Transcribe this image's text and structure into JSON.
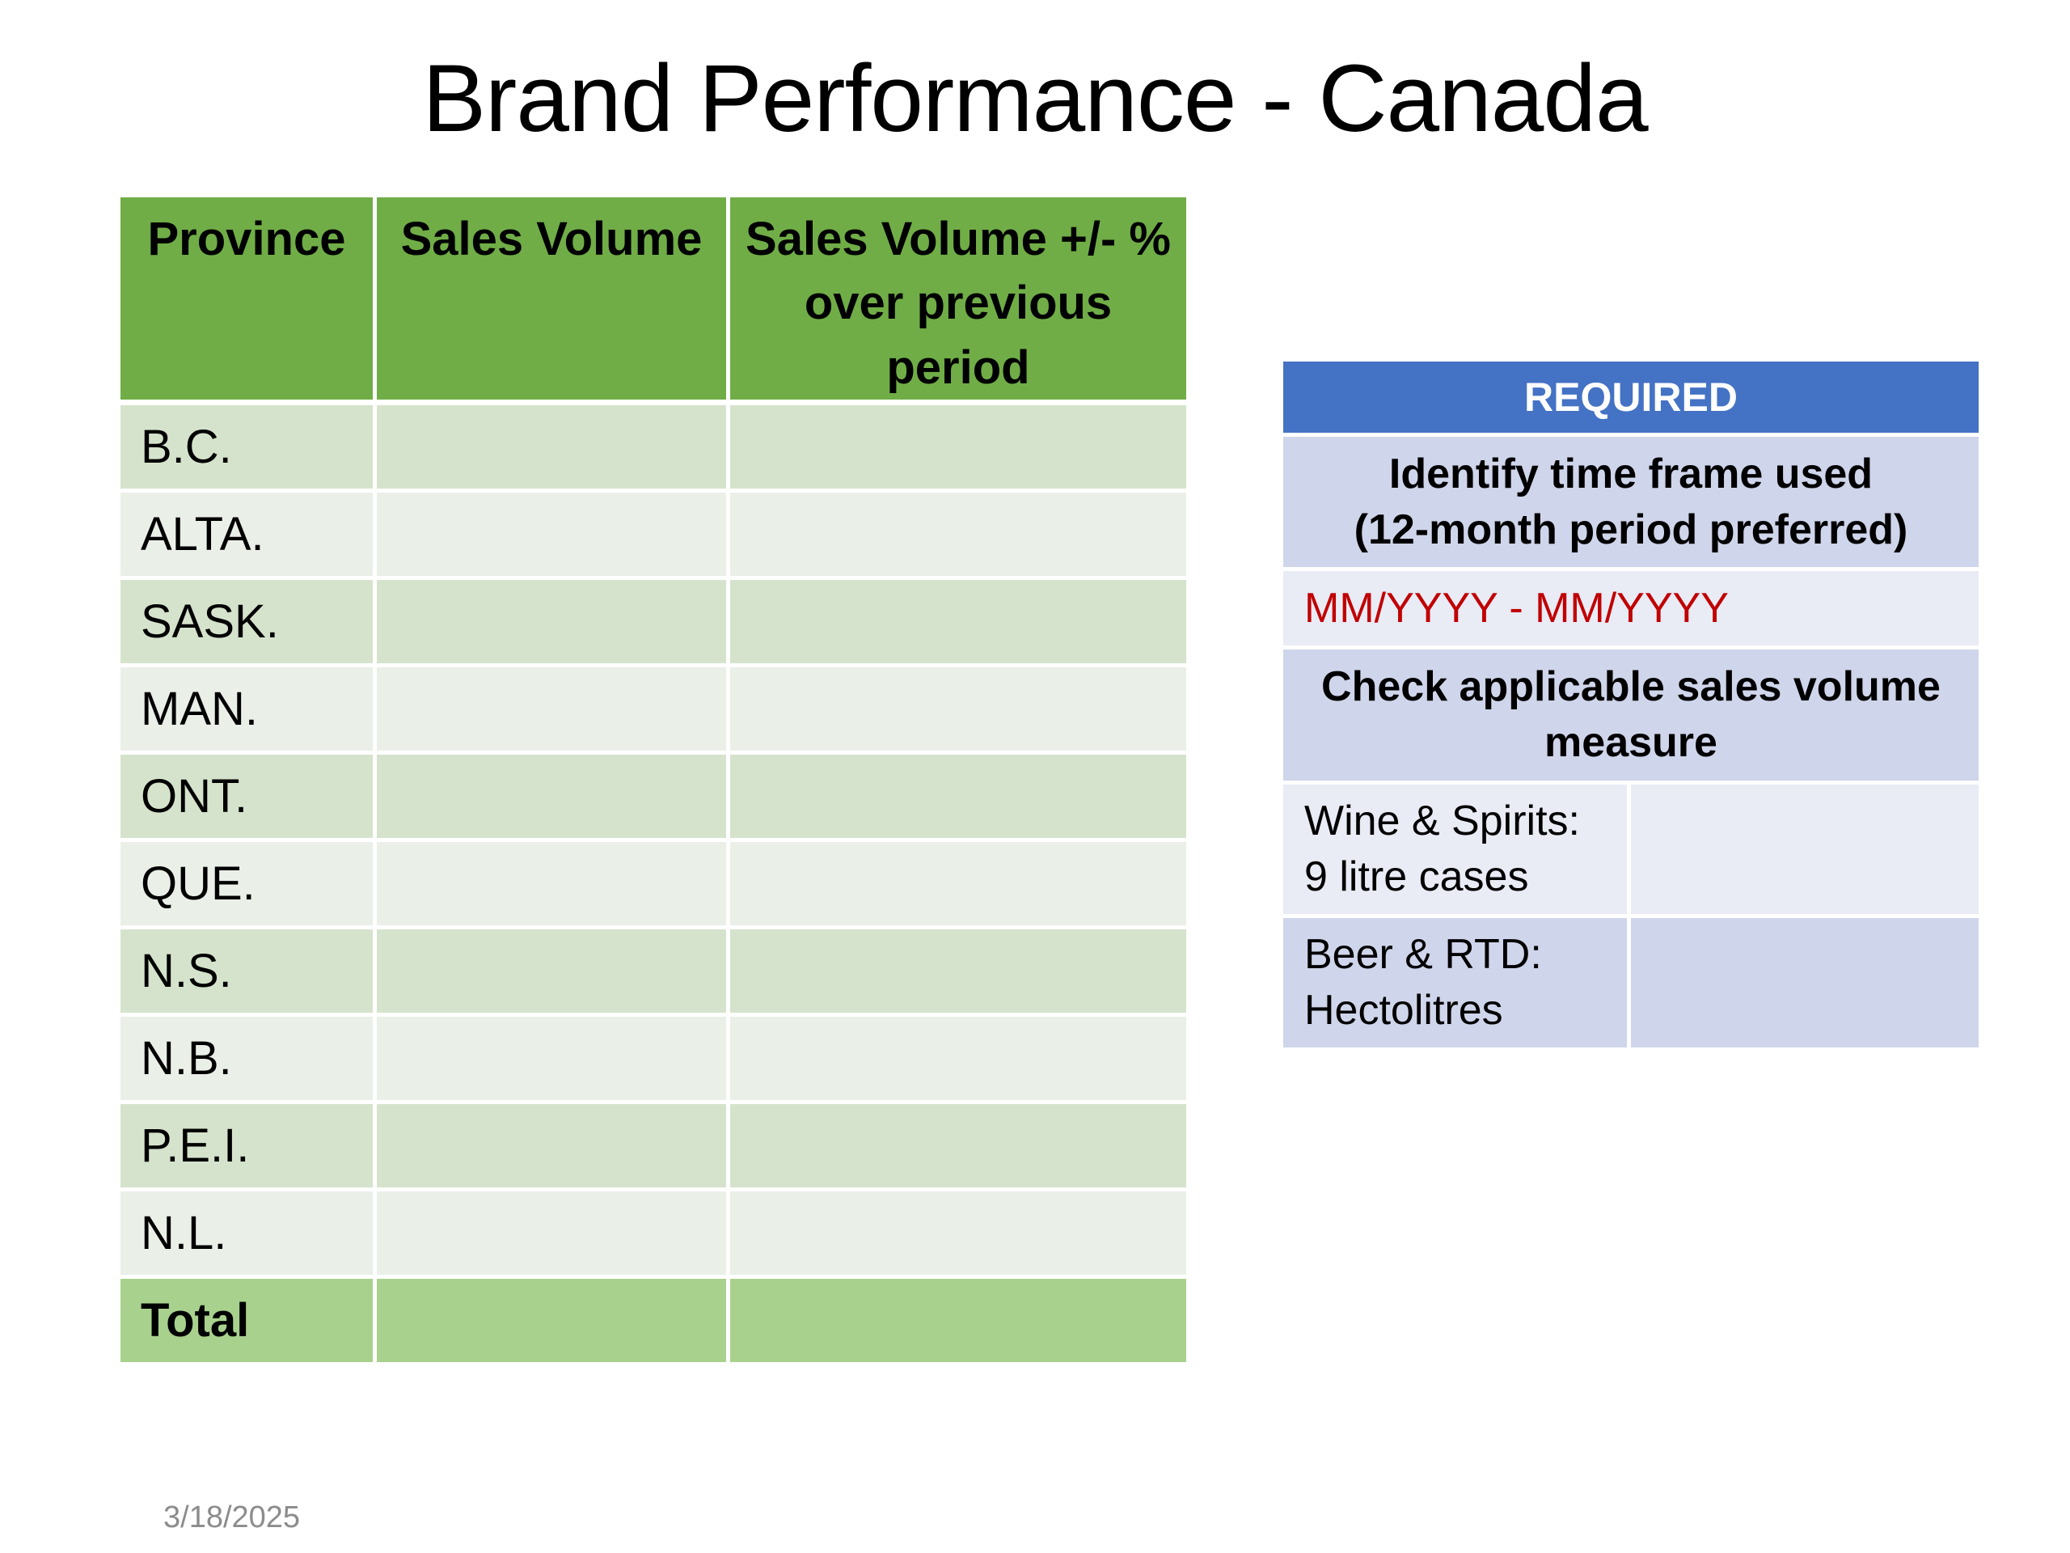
{
  "title": "Brand Performance - Canada",
  "table": {
    "headers": {
      "province": "Province",
      "sales_volume": "Sales Volume",
      "sales_change": "Sales Volume +/- % over previous period"
    },
    "rows": [
      {
        "province": "B.C.",
        "sales_volume": "",
        "sales_change": ""
      },
      {
        "province": "ALTA.",
        "sales_volume": "",
        "sales_change": ""
      },
      {
        "province": "SASK.",
        "sales_volume": "",
        "sales_change": ""
      },
      {
        "province": "MAN.",
        "sales_volume": "",
        "sales_change": ""
      },
      {
        "province": "ONT.",
        "sales_volume": "",
        "sales_change": ""
      },
      {
        "province": "QUE.",
        "sales_volume": "",
        "sales_change": ""
      },
      {
        "province": "N.S.",
        "sales_volume": "",
        "sales_change": ""
      },
      {
        "province": "N.B.",
        "sales_volume": "",
        "sales_change": ""
      },
      {
        "province": "P.E.I.",
        "sales_volume": "",
        "sales_change": ""
      },
      {
        "province": "N.L.",
        "sales_volume": "",
        "sales_change": ""
      }
    ],
    "total": {
      "label": "Total",
      "sales_volume": "",
      "sales_change": ""
    }
  },
  "required": {
    "heading": "REQUIRED",
    "time_frame_line1": "Identify time frame used",
    "time_frame_line2": "(12-month period preferred)",
    "date_placeholder": "MM/YYYY - MM/YYYY",
    "measure_label": "Check applicable sales volume measure",
    "options": [
      {
        "line1": "Wine & Spirits:",
        "line2": "9 litre cases",
        "checked": ""
      },
      {
        "line1": "Beer & RTD:",
        "line2": "Hectolitres",
        "checked": ""
      }
    ]
  },
  "footer": {
    "date": "3/18/2025"
  },
  "colors": {
    "header_green": "#70ad47",
    "row_green": "#d5e3cc",
    "row_light": "#eaefe8",
    "total_green": "#a9d18e",
    "required_blue": "#4472c4",
    "panel_band": "#cfd5ea",
    "panel_light": "#e9ebf5",
    "placeholder_red": "#c00000"
  }
}
